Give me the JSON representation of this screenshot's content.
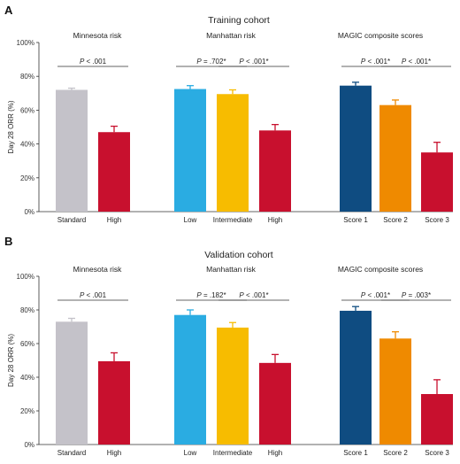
{
  "chart_data": [
    {
      "panel": "A",
      "type": "bar",
      "title": "Training cohort",
      "ylabel": "Day 28 ORR (%)",
      "ylim": [
        0,
        100
      ],
      "yticks": [
        "0%",
        "20%",
        "40%",
        "60%",
        "80%",
        "100%"
      ],
      "groups": [
        {
          "title": "Minnesota risk",
          "bars": [
            {
              "category": "Standard",
              "value": 72,
              "error": 1,
              "color": "#c4c2c9"
            },
            {
              "category": "High",
              "value": 47,
              "error": 3.5,
              "color": "#c8102e"
            }
          ],
          "comparisons": [
            {
              "from": 0,
              "to": 1,
              "label": "P < .001"
            }
          ]
        },
        {
          "title": "Manhattan risk",
          "bars": [
            {
              "category": "Low",
              "value": 72.5,
              "error": 2,
              "color": "#2aace2"
            },
            {
              "category": "Intermediate",
              "value": 69.5,
              "error": 2.5,
              "color": "#f7bc00"
            },
            {
              "category": "High",
              "value": 48,
              "error": 3.5,
              "color": "#c8102e"
            }
          ],
          "comparisons": [
            {
              "from": 0,
              "to": 1,
              "label": "P = .702*"
            },
            {
              "from": 1,
              "to": 2,
              "label": "P < .001*"
            }
          ]
        },
        {
          "title": "MAGIC composite scores",
          "bars": [
            {
              "category": "Score 1",
              "value": 74.5,
              "error": 2,
              "color": "#0f4c81"
            },
            {
              "category": "Score 2",
              "value": 63,
              "error": 3,
              "color": "#ef8a00"
            },
            {
              "category": "Score 3",
              "value": 35,
              "error": 6,
              "color": "#c8102e"
            }
          ],
          "comparisons": [
            {
              "from": 0,
              "to": 1,
              "label": "P < .001*"
            },
            {
              "from": 1,
              "to": 2,
              "label": "P < .001*"
            }
          ]
        }
      ]
    },
    {
      "panel": "B",
      "type": "bar",
      "title": "Validation cohort",
      "ylabel": "Day 28 ORR (%)",
      "ylim": [
        0,
        100
      ],
      "yticks": [
        "0%",
        "20%",
        "40%",
        "60%",
        "80%",
        "100%"
      ],
      "groups": [
        {
          "title": "Minnesota risk",
          "bars": [
            {
              "category": "Standard",
              "value": 73,
              "error": 2,
              "color": "#c4c2c9"
            },
            {
              "category": "High",
              "value": 49.5,
              "error": 5,
              "color": "#c8102e"
            }
          ],
          "comparisons": [
            {
              "from": 0,
              "to": 1,
              "label": "P < .001"
            }
          ]
        },
        {
          "title": "Manhattan risk",
          "bars": [
            {
              "category": "Low",
              "value": 77,
              "error": 3,
              "color": "#2aace2"
            },
            {
              "category": "Intermediate",
              "value": 69.5,
              "error": 3,
              "color": "#f7bc00"
            },
            {
              "category": "High",
              "value": 48.5,
              "error": 5,
              "color": "#c8102e"
            }
          ],
          "comparisons": [
            {
              "from": 0,
              "to": 1,
              "label": "P = .182*"
            },
            {
              "from": 1,
              "to": 2,
              "label": "P < .001*"
            }
          ]
        },
        {
          "title": "MAGIC composite scores",
          "bars": [
            {
              "category": "Score 1",
              "value": 79.5,
              "error": 2.5,
              "color": "#0f4c81"
            },
            {
              "category": "Score 2",
              "value": 63,
              "error": 4,
              "color": "#ef8a00"
            },
            {
              "category": "Score 3",
              "value": 30,
              "error": 8.5,
              "color": "#c8102e"
            }
          ],
          "comparisons": [
            {
              "from": 0,
              "to": 1,
              "label": "P < .001*"
            },
            {
              "from": 1,
              "to": 2,
              "label": "P = .003*"
            }
          ]
        }
      ]
    }
  ]
}
